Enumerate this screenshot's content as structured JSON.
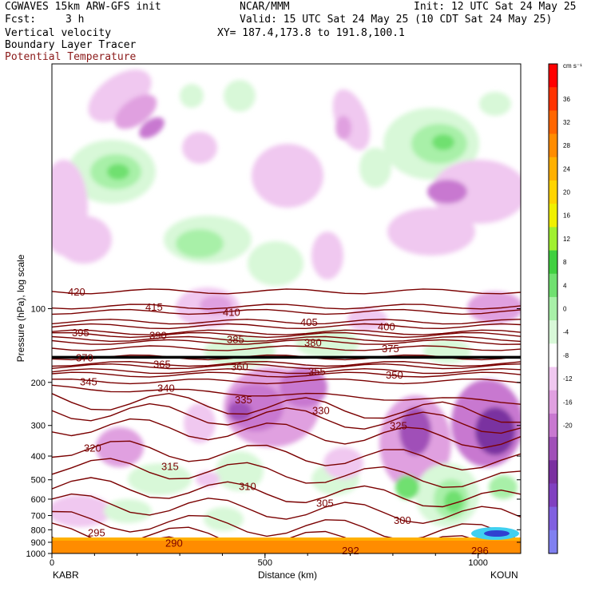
{
  "header": {
    "model": "CGWAVES 15km ARW-GFS init",
    "org": "NCAR/MMM",
    "init": "Init: 12 UTC Sat 24 May 25",
    "fcst_label": "Fcst:",
    "fcst_value": "3 h",
    "valid": "Valid: 15 UTC Sat 24 May 25 (10 CDT Sat 24 May 25)",
    "field1": "Vertical velocity",
    "field2": "Boundary Layer Tracer",
    "field3": "Potential Temperature",
    "xy": "XY= 187.4,173.8 to 191.8,100.1"
  },
  "colors": {
    "theta": "#7a0000",
    "field3_text": "#8b1a1a"
  },
  "chart_data": {
    "type": "contour",
    "xlabel": "Distance (km)",
    "ylabel": "Pressure (hPa), log scale",
    "xlim": [
      0,
      1100
    ],
    "ylim": [
      1000,
      10
    ],
    "y_scale": "log",
    "x_ticks": [
      "0",
      "500",
      "1000"
    ],
    "y_ticks": [
      "100",
      "200",
      "300",
      "400",
      "500",
      "600",
      "700",
      "800",
      "900",
      "1000"
    ],
    "endpoints": {
      "left": "KABR",
      "right": "KOUN"
    },
    "colorbar": {
      "unit": "cm s⁻¹",
      "tick_labels": [
        "36",
        "32",
        "28",
        "24",
        "20",
        "16",
        "12",
        "8",
        "4",
        "0",
        "-4",
        "-8",
        "-12",
        "-16",
        "-20"
      ],
      "colors": [
        "#ff0000",
        "#ff3300",
        "#ff6600",
        "#ff8c00",
        "#ffb000",
        "#ffd400",
        "#f0f000",
        "#a0f030",
        "#40d040",
        "#70e070",
        "#a8f0a8",
        "#d8f8d8",
        "#ffffff",
        "#f0c8f0",
        "#e0a0e0",
        "#c878d0",
        "#a050b8",
        "#7a30a0",
        "#8040c0",
        "#8060e0",
        "#8080f0"
      ]
    },
    "theta_isentropes": [
      {
        "label": "420",
        "p": 85
      },
      {
        "label": "415",
        "p": 98
      },
      {
        "label": "410",
        "p": 103
      },
      {
        "label": "405",
        "p": 113
      },
      {
        "label": "400",
        "p": 118
      },
      {
        "label": "395",
        "p": 125
      },
      {
        "label": "390",
        "p": 128
      },
      {
        "label": "385",
        "p": 133
      },
      {
        "label": "380",
        "p": 137
      },
      {
        "label": "375",
        "p": 145
      },
      {
        "label": "370",
        "p": 158
      },
      {
        "label": "365",
        "p": 168
      },
      {
        "label": "360",
        "p": 172
      },
      {
        "label": "355",
        "p": 180
      },
      {
        "label": "350",
        "p": 186
      },
      {
        "label": "345",
        "p": 198
      },
      {
        "label": "340",
        "p": 210
      },
      {
        "label": "335",
        "p": 235
      },
      {
        "label": "330",
        "p": 260
      },
      {
        "label": "325",
        "p": 300
      },
      {
        "label": "320",
        "p": 370
      },
      {
        "label": "315",
        "p": 440
      },
      {
        "label": "310",
        "p": 530
      },
      {
        "label": "305",
        "p": 620
      },
      {
        "label": "300",
        "p": 730
      },
      {
        "label": "295",
        "p": 820
      },
      {
        "label": "290",
        "p": 905
      }
    ],
    "surface_labels": [
      "292",
      "296"
    ]
  }
}
